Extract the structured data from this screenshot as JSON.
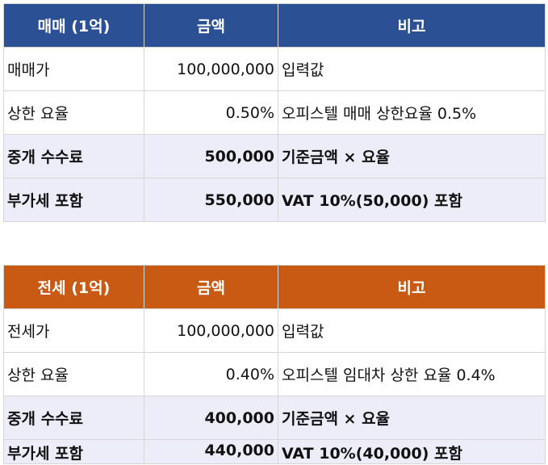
{
  "sale_table": {
    "header": {
      "col1": "매매 (1억)",
      "col2": "금액",
      "col3": "비고"
    },
    "rows": [
      {
        "label": "매매가",
        "amount": "100,000,000",
        "note": "입력값"
      },
      {
        "label": "상한 요율",
        "amount": "0.50%",
        "note": "오피스텔 매매 상한요율 0.5%"
      },
      {
        "label": "중개 수수료",
        "amount": "500,000",
        "note": "기준금액 × 요율"
      },
      {
        "label": "부가세 포함",
        "amount": "550,000",
        "note": "VAT 10%(50,000) 포함"
      }
    ],
    "header_color": "#2b5194"
  },
  "jeonse_table": {
    "header": {
      "col1": "전세 (1억)",
      "col2": "금액",
      "col3": "비고"
    },
    "rows": [
      {
        "label": "전세가",
        "amount": "100,000,000",
        "note": "입력값"
      },
      {
        "label": "상한 요율",
        "amount": "0.40%",
        "note": "오피스텔 임대차 상한 요율 0.4%"
      },
      {
        "label": "중개 수수료",
        "amount": "400,000",
        "note": "기준금액 × 요율"
      },
      {
        "label": "부가세 포함",
        "amount": "440,000",
        "note": "VAT 10%(40,000) 포함"
      }
    ],
    "header_color": "#c85a14"
  },
  "highlight_row_color": "#ededfa"
}
